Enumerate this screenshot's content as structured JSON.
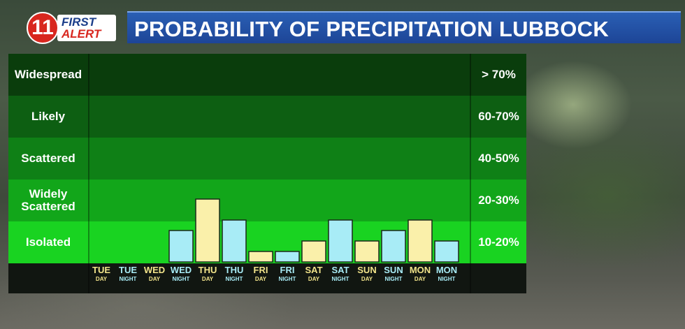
{
  "logo": {
    "number": "11",
    "line1": "FIRST",
    "line2": "ALERT"
  },
  "title": "PROBABILITY OF PRECIPITATION LUBBOCK",
  "colors": {
    "day_bar": "#faf0aa",
    "night_bar": "#a8ecf6",
    "day_label": "#f2e48a",
    "night_label": "#a8ecf6"
  },
  "chart_data": {
    "type": "bar",
    "title": "PROBABILITY OF PRECIPITATION LUBBOCK",
    "bands": [
      {
        "label": "Widespread",
        "range": "> 70%",
        "color": "#0a3d0c"
      },
      {
        "label": "Likely",
        "range": "60-70%",
        "color": "#0d5f12"
      },
      {
        "label": "Scattered",
        "range": "40-50%",
        "color": "#0f8016"
      },
      {
        "label": "Widely Scattered",
        "range": "20-30%",
        "color": "#12a61a"
      },
      {
        "label": "Isolated",
        "range": "10-20%",
        "color": "#19d321"
      }
    ],
    "categories": [
      {
        "day": "TUE",
        "period": "DAY"
      },
      {
        "day": "TUE",
        "period": "NIGHT"
      },
      {
        "day": "WED",
        "period": "DAY"
      },
      {
        "day": "WED",
        "period": "NIGHT"
      },
      {
        "day": "THU",
        "period": "DAY"
      },
      {
        "day": "THU",
        "period": "NIGHT"
      },
      {
        "day": "FRI",
        "period": "DAY"
      },
      {
        "day": "FRI",
        "period": "NIGHT"
      },
      {
        "day": "SAT",
        "period": "DAY"
      },
      {
        "day": "SAT",
        "period": "NIGHT"
      },
      {
        "day": "SUN",
        "period": "DAY"
      },
      {
        "day": "SUN",
        "period": "NIGHT"
      },
      {
        "day": "MON",
        "period": "DAY"
      },
      {
        "day": "MON",
        "period": "NIGHT"
      }
    ],
    "values": [
      0,
      0,
      0,
      15,
      30,
      20,
      5,
      5,
      10,
      20,
      10,
      15,
      20,
      10
    ],
    "ylim": [
      0,
      100
    ],
    "grid": false
  }
}
